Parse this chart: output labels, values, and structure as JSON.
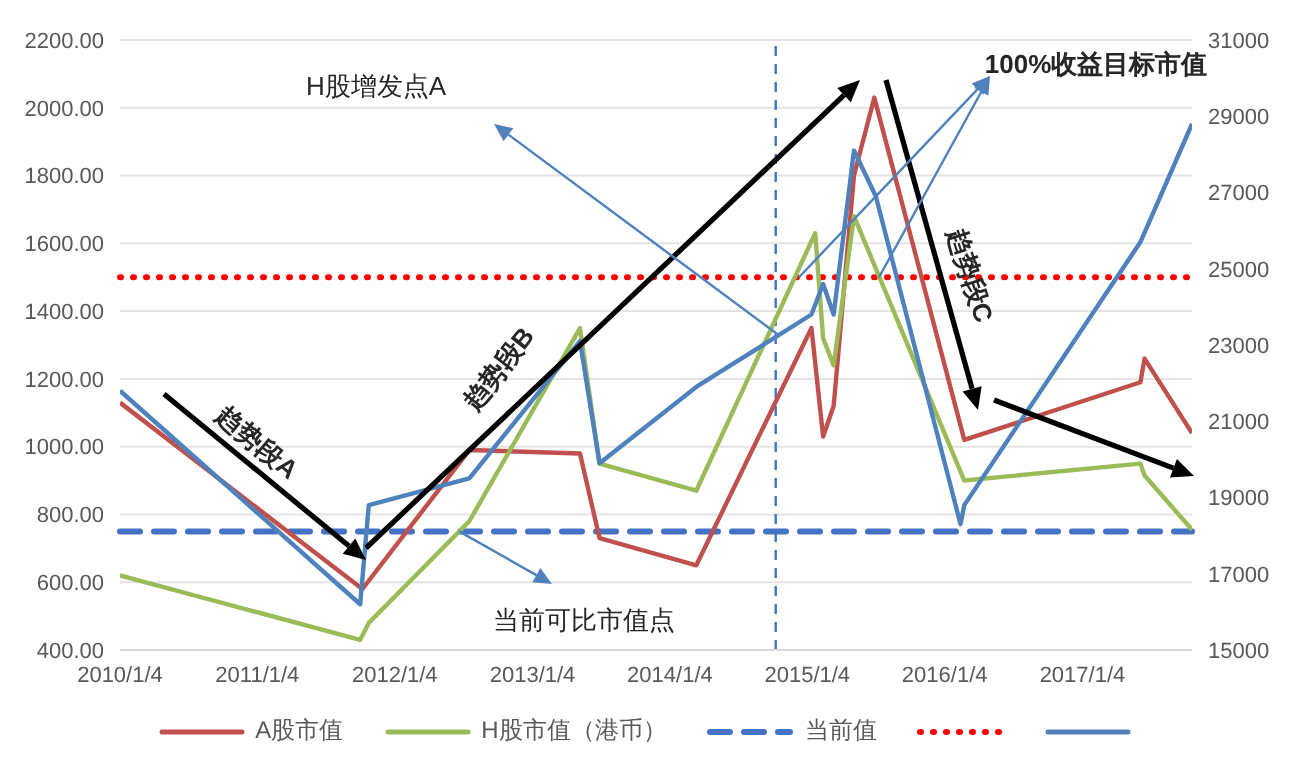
{
  "chart_data": {
    "type": "line",
    "xlim": [
      "2010-01-04",
      "2017-10-22"
    ],
    "xticks": [
      {
        "value": "2010-01-04",
        "label": "2010/1/4"
      },
      {
        "value": "2011-01-04",
        "label": "2011/1/4"
      },
      {
        "value": "2012-01-04",
        "label": "2012/1/4"
      },
      {
        "value": "2013-01-04",
        "label": "2013/1/4"
      },
      {
        "value": "2014-01-04",
        "label": "2014/1/4"
      },
      {
        "value": "2015-01-04",
        "label": "2015/1/4"
      },
      {
        "value": "2016-01-04",
        "label": "2016/1/4"
      },
      {
        "value": "2017-01-04",
        "label": "2017/1/4"
      }
    ],
    "ylim": [
      400,
      2200
    ],
    "yticks": [
      {
        "value": 400,
        "label": "400.00"
      },
      {
        "value": 600,
        "label": "600.00"
      },
      {
        "value": 800,
        "label": "800.00"
      },
      {
        "value": 1000,
        "label": "1000.00"
      },
      {
        "value": 1200,
        "label": "1200.00"
      },
      {
        "value": 1400,
        "label": "1400.00"
      },
      {
        "value": 1600,
        "label": "1600.00"
      },
      {
        "value": 1800,
        "label": "1800.00"
      },
      {
        "value": 2000,
        "label": "2000.00"
      },
      {
        "value": 2200,
        "label": "2200.00"
      }
    ],
    "y2lim": [
      15000,
      31000
    ],
    "y2ticks": [
      15000,
      17000,
      19000,
      21000,
      23000,
      25000,
      27000,
      29000,
      31000
    ],
    "grid": "y",
    "legend": "bottom",
    "series": [
      {
        "name": "A股市值",
        "color": "#c0504d",
        "x": [
          "2010-01-04",
          "2011-10-10",
          "2012-07-20",
          "2013-05-10",
          "2013-07-01",
          "2014-03-15",
          "2015-01-15",
          "2015-02-15",
          "2015-03-15",
          "2015-05-08",
          "2015-07-01",
          "2016-02-25",
          "2017-06-07",
          "2017-06-18",
          "2017-10-22"
        ],
        "values": [
          1130,
          580,
          990,
          980,
          730,
          650,
          1350,
          1030,
          1120,
          1800,
          2030,
          1020,
          1190,
          1260,
          1040
        ]
      },
      {
        "name": "H股市值（港币）",
        "color": "#9bbb59",
        "x": [
          "2010-01-04",
          "2011-10-04",
          "2011-10-27",
          "2012-07-20",
          "2013-05-10",
          "2013-07-01",
          "2014-03-15",
          "2015-01-25",
          "2015-02-15",
          "2015-03-15",
          "2015-05-08",
          "2016-02-25",
          "2017-06-07",
          "2017-06-18",
          "2017-10-22"
        ],
        "values": [
          620,
          430,
          480,
          780,
          1350,
          950,
          870,
          1630,
          1320,
          1240,
          1680,
          900,
          950,
          915,
          755
        ]
      },
      {
        "color": "#4f81bd",
        "axis": "y2",
        "x": [
          "2010-01-04",
          "2011-10-04",
          "2011-10-27",
          "2012-07-20",
          "2013-05-10",
          "2013-07-01",
          "2014-03-15",
          "2015-01-15",
          "2015-02-15",
          "2015-03-15",
          "2015-05-08",
          "2015-07-05",
          "2016-02-15",
          "2016-02-25",
          "2017-06-07",
          "2017-10-22"
        ],
        "values": [
          21800,
          16200,
          18800,
          19500,
          23100,
          19900,
          21900,
          23800,
          24600,
          23800,
          28100,
          26900,
          18300,
          18800,
          25700,
          28800
        ]
      }
    ],
    "ref_lines": [
      {
        "axis": "y",
        "value": 750,
        "label": "当前值",
        "color": "#4472c4",
        "line_style": "dashed"
      },
      {
        "axis": "y",
        "value": 1500,
        "color": "#ff0000",
        "line_style": "dotted"
      },
      {
        "axis": "x",
        "value": "2014-10-12",
        "color": "#4472c4",
        "line_style": "dashed"
      }
    ],
    "annotations": [
      "H股增发点A",
      {
        "text": "100%收益目标市值",
        "x": "2014-12-13",
        "y": 1500
      },
      {
        "text": "当前可比市值点",
        "x": "2012-06-23",
        "y": 750
      },
      "趋势段A",
      "趋势段B",
      "趋势段C"
    ]
  }
}
